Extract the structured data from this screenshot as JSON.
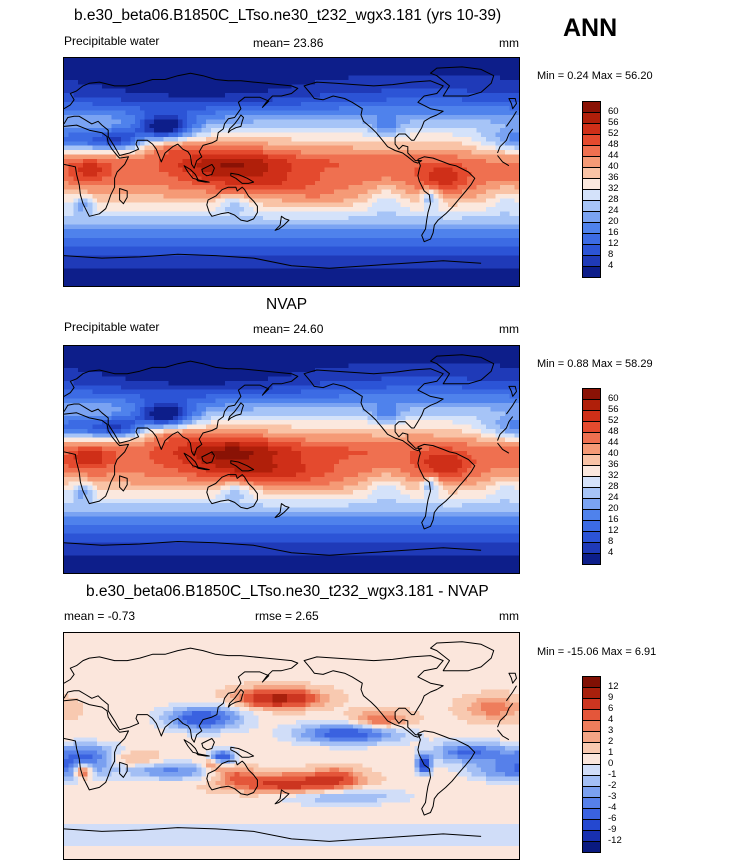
{
  "season": "ANN",
  "panels": [
    {
      "id": "model",
      "title": "b.e30_beta06.B1850C_LTso.ne30_t232_wgx3.181 (yrs 10-39)",
      "left_label": "Precipitable water",
      "center_label": "mean=  23.86",
      "units": "mm",
      "minmax": "Min =   0.24 Max =  56.20"
    },
    {
      "id": "obs",
      "title": "NVAP",
      "left_label": "Precipitable water",
      "center_label": "mean=  24.60",
      "units": "mm",
      "minmax": "Min =   0.88 Max =  58.29"
    },
    {
      "id": "diff",
      "title": "b.e30_beta06.B1850C_LTso.ne30_t232_wgx3.181 - NVAP",
      "left_label": "mean =  -0.73",
      "center_label": "rmse =   2.65",
      "units": "mm",
      "minmax": "Min = -15.06 Max =   6.91"
    }
  ],
  "chart_data": [
    {
      "type": "heatmap",
      "title": "b.e30_beta06.B1850C_LTso.ne30_t232_wgx3.181 (yrs 10-39)",
      "variable": "Precipitable water",
      "units": "mm",
      "mean": 23.86,
      "min": 0.24,
      "max": 56.2,
      "colorbar_levels": [
        4,
        8,
        12,
        16,
        20,
        24,
        28,
        32,
        36,
        40,
        44,
        48,
        52,
        56,
        60
      ],
      "colors": [
        "#0d1e8a",
        "#1f3ab8",
        "#2c54d6",
        "#3c6be4",
        "#4f82ec",
        "#7aa3f2",
        "#a6c4f7",
        "#d4e2fa",
        "#fbe8de",
        "#f9c3a6",
        "#f59a76",
        "#ef7050",
        "#e44a2e",
        "#cf2f18",
        "#b01f0a",
        "#8a1205"
      ]
    },
    {
      "type": "heatmap",
      "title": "NVAP",
      "variable": "Precipitable water",
      "units": "mm",
      "mean": 24.6,
      "min": 0.88,
      "max": 58.29,
      "colorbar_levels": [
        4,
        8,
        12,
        16,
        20,
        24,
        28,
        32,
        36,
        40,
        44,
        48,
        52,
        56,
        60
      ],
      "colors": [
        "#0d1e8a",
        "#1f3ab8",
        "#2c54d6",
        "#3c6be4",
        "#4f82ec",
        "#7aa3f2",
        "#a6c4f7",
        "#d4e2fa",
        "#fbe8de",
        "#f9c3a6",
        "#f59a76",
        "#ef7050",
        "#e44a2e",
        "#cf2f18",
        "#b01f0a",
        "#8a1205"
      ]
    },
    {
      "type": "heatmap",
      "title": "b.e30_beta06.B1850C_LTso.ne30_t232_wgx3.181 - NVAP",
      "units": "mm",
      "mean": -0.73,
      "rmse": 2.65,
      "min": -15.06,
      "max": 6.91,
      "colorbar_levels": [
        -12,
        -9,
        -6,
        -4,
        -3,
        -2,
        -1,
        0,
        1,
        2,
        3,
        4,
        6,
        9,
        12
      ],
      "colors": [
        "#0a1a80",
        "#1830b0",
        "#2448d0",
        "#3a62e0",
        "#5680ea",
        "#7aa0f0",
        "#a3bff5",
        "#d0ddf8",
        "#fbe6dc",
        "#f8c9b0",
        "#f4a585",
        "#ee7d5c",
        "#e4563a",
        "#cc3520",
        "#a8200c",
        "#801004"
      ]
    }
  ]
}
